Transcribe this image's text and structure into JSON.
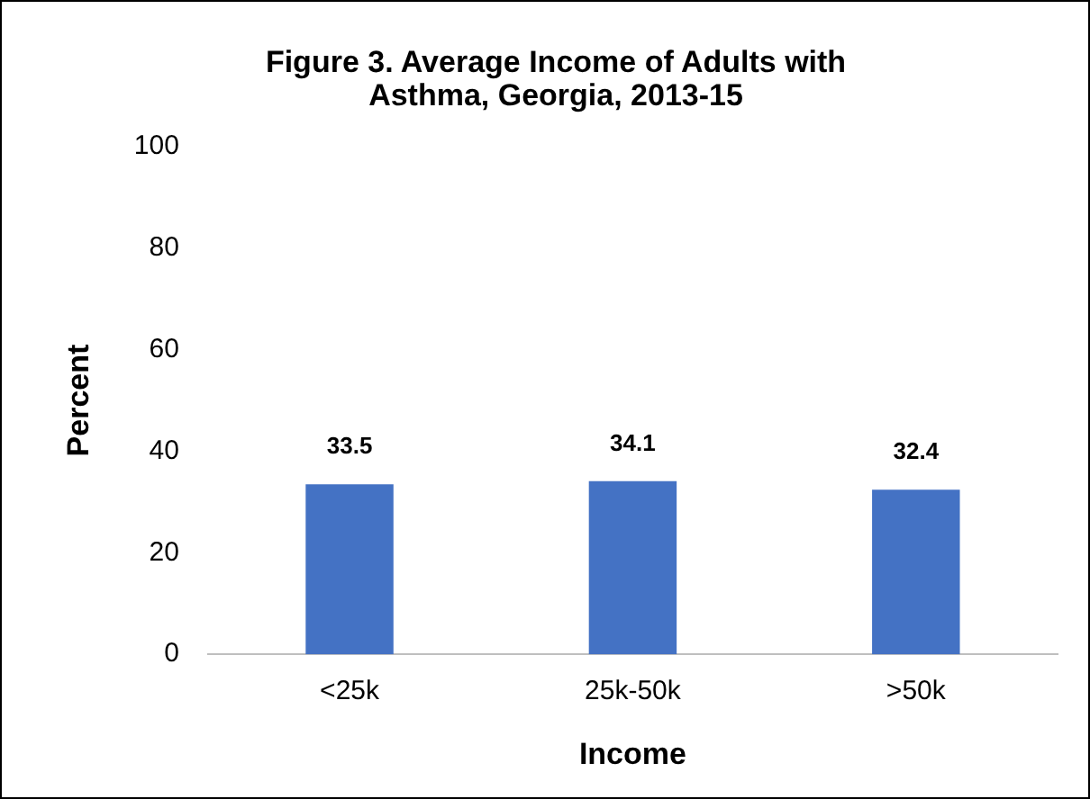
{
  "chart_data": {
    "type": "bar",
    "title": "Figure 3. Average Income of Adults with Asthma, Georgia, 2013-15",
    "xlabel": "Income",
    "ylabel": "Percent",
    "categories": [
      "<25k",
      "25k-50k",
      ">50k"
    ],
    "values": [
      33.5,
      34.1,
      32.4
    ],
    "color": "#4472c4",
    "ylim": [
      0,
      100
    ],
    "yticks": [
      0,
      20,
      40,
      60,
      80,
      100
    ],
    "grid": false,
    "legend": false,
    "data_labels": true
  }
}
